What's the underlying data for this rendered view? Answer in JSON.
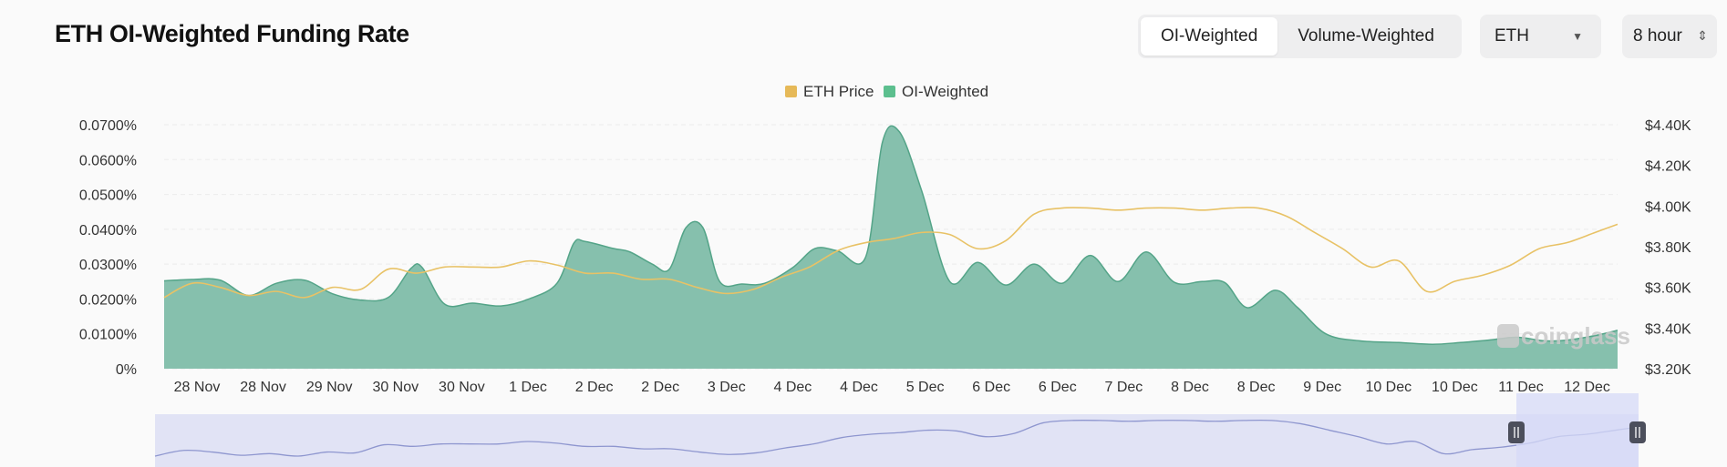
{
  "header": {
    "title": "ETH OI-Weighted Funding Rate"
  },
  "controls": {
    "weighting_tabs": [
      {
        "label": "OI-Weighted",
        "active": true
      },
      {
        "label": "Volume-Weighted",
        "active": false
      }
    ],
    "coin_select": {
      "value": "ETH"
    },
    "interval_select": {
      "value": "8 hour"
    }
  },
  "colors": {
    "price_line": "#e8c266",
    "oi_fill": "#86c0ad",
    "oi_stroke": "#54a488",
    "legend_price": "#e6b958",
    "legend_oi": "#5cbf8e",
    "navigator_fill": "#e1e3f5",
    "navigator_line": "#8e96cf",
    "navigator_selection": "#d5d9f7"
  },
  "watermark": "coinglass",
  "chart_data": {
    "type": "area",
    "x": [
      "28 Nov",
      "28 Nov",
      "29 Nov",
      "30 Nov",
      "30 Nov",
      "1 Dec",
      "2 Dec",
      "2 Dec",
      "3 Dec",
      "4 Dec",
      "4 Dec",
      "5 Dec",
      "6 Dec",
      "6 Dec",
      "7 Dec",
      "8 Dec",
      "8 Dec",
      "9 Dec",
      "10 Dec",
      "10 Dec",
      "11 Dec",
      "12 Dec"
    ],
    "legend": [
      {
        "name": "ETH Price",
        "color": "#e6b958"
      },
      {
        "name": "OI-Weighted",
        "color": "#5cbf8e"
      }
    ],
    "legend_position": "top-center",
    "y_left": {
      "unit": "%",
      "range": [
        0,
        0.07
      ],
      "ticks": [
        "0%",
        "0.0100%",
        "0.0200%",
        "0.0300%",
        "0.0400%",
        "0.0500%",
        "0.0600%",
        "0.0700%"
      ]
    },
    "y_right": {
      "range": [
        3200,
        4400
      ],
      "ticks": [
        "$3.20K",
        "$3.40K",
        "$3.60K",
        "$3.80K",
        "$4.00K",
        "$4.20K",
        "$4.40K"
      ]
    },
    "grid": true,
    "series": [
      {
        "name": "OI-Weighted",
        "type": "area",
        "axis": "left",
        "points": [
          [
            0,
            0.0252
          ],
          [
            0.5,
            0.0256
          ],
          [
            1,
            0.0254
          ],
          [
            1.5,
            0.021
          ],
          [
            2,
            0.0245
          ],
          [
            2.5,
            0.0254
          ],
          [
            3,
            0.0215
          ],
          [
            3.5,
            0.0197
          ],
          [
            4,
            0.0205
          ],
          [
            4.4,
            0.0288
          ],
          [
            4.6,
            0.029
          ],
          [
            5,
            0.0185
          ],
          [
            5.5,
            0.0188
          ],
          [
            6,
            0.018
          ],
          [
            6.5,
            0.02
          ],
          [
            7,
            0.0245
          ],
          [
            7.3,
            0.036
          ],
          [
            7.5,
            0.0365
          ],
          [
            8,
            0.0345
          ],
          [
            8.3,
            0.0335
          ],
          [
            8.7,
            0.03
          ],
          [
            9,
            0.0285
          ],
          [
            9.3,
            0.0405
          ],
          [
            9.6,
            0.0405
          ],
          [
            9.9,
            0.025
          ],
          [
            10.3,
            0.0243
          ],
          [
            10.7,
            0.0245
          ],
          [
            11.2,
            0.029
          ],
          [
            11.6,
            0.0345
          ],
          [
            12,
            0.0338
          ],
          [
            12.5,
            0.032
          ],
          [
            12.8,
            0.065
          ],
          [
            13.1,
            0.068
          ],
          [
            13.5,
            0.051
          ],
          [
            14,
            0.025
          ],
          [
            14.5,
            0.0305
          ],
          [
            15,
            0.024
          ],
          [
            15.5,
            0.03
          ],
          [
            16,
            0.0245
          ],
          [
            16.5,
            0.0325
          ],
          [
            17,
            0.025
          ],
          [
            17.5,
            0.0335
          ],
          [
            18,
            0.0248
          ],
          [
            18.5,
            0.025
          ],
          [
            18.9,
            0.0247
          ],
          [
            19.3,
            0.0175
          ],
          [
            19.8,
            0.0225
          ],
          [
            20.2,
            0.0175
          ],
          [
            20.7,
            0.01
          ],
          [
            21.3,
            0.008
          ],
          [
            22,
            0.0075
          ],
          [
            22.6,
            0.007
          ],
          [
            23.1,
            0.0075
          ],
          [
            23.6,
            0.0082
          ],
          [
            24.1,
            0.009
          ],
          [
            24.6,
            0.008
          ],
          [
            25,
            0.0082
          ],
          [
            25.5,
            0.0095
          ],
          [
            25.9,
            0.011
          ]
        ]
      },
      {
        "name": "ETH Price",
        "type": "line",
        "axis": "right",
        "points": [
          [
            0,
            3550
          ],
          [
            0.5,
            3620
          ],
          [
            1,
            3600
          ],
          [
            1.5,
            3560
          ],
          [
            2,
            3580
          ],
          [
            2.5,
            3550
          ],
          [
            3,
            3600
          ],
          [
            3.5,
            3590
          ],
          [
            4,
            3690
          ],
          [
            4.5,
            3670
          ],
          [
            5,
            3700
          ],
          [
            5.5,
            3700
          ],
          [
            6,
            3700
          ],
          [
            6.5,
            3730
          ],
          [
            7,
            3710
          ],
          [
            7.5,
            3670
          ],
          [
            8,
            3670
          ],
          [
            8.5,
            3640
          ],
          [
            9,
            3640
          ],
          [
            9.5,
            3600
          ],
          [
            10,
            3570
          ],
          [
            10.5,
            3590
          ],
          [
            11,
            3650
          ],
          [
            11.5,
            3700
          ],
          [
            12,
            3780
          ],
          [
            12.5,
            3820
          ],
          [
            13,
            3840
          ],
          [
            13.5,
            3870
          ],
          [
            14,
            3860
          ],
          [
            14.5,
            3790
          ],
          [
            15,
            3830
          ],
          [
            15.5,
            3960
          ],
          [
            16,
            3990
          ],
          [
            16.5,
            3990
          ],
          [
            17,
            3980
          ],
          [
            17.5,
            3990
          ],
          [
            18,
            3990
          ],
          [
            18.5,
            3980
          ],
          [
            19,
            3990
          ],
          [
            19.5,
            3990
          ],
          [
            20,
            3950
          ],
          [
            20.5,
            3870
          ],
          [
            21,
            3790
          ],
          [
            21.5,
            3700
          ],
          [
            22,
            3730
          ],
          [
            22.5,
            3580
          ],
          [
            23,
            3630
          ],
          [
            23.5,
            3660
          ],
          [
            24,
            3710
          ],
          [
            24.5,
            3790
          ],
          [
            25,
            3820
          ],
          [
            25.5,
            3870
          ],
          [
            25.9,
            3910
          ]
        ]
      }
    ]
  }
}
